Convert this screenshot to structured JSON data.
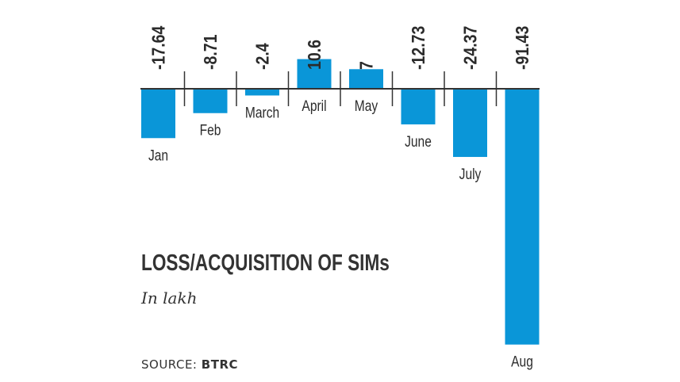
{
  "chart_data": {
    "type": "bar",
    "title": "LOSS/ACQUISITION OF SIMs",
    "subtitle": "In lakh",
    "source_label": "SOURCE:",
    "source_value": "BTRC",
    "categories": [
      "Jan",
      "Feb",
      "March",
      "April",
      "May",
      "June",
      "July",
      "Aug"
    ],
    "values": [
      -17.64,
      -8.71,
      -2.4,
      10.6,
      7,
      -12.73,
      -24.37,
      -91.43
    ],
    "value_labels": [
      "-17.64",
      "-8.71",
      "-2.4",
      "10.6",
      "7",
      "-12.73",
      "-24.37",
      "-91.43"
    ],
    "bar_color": "#0a96d8",
    "grid": false
  }
}
